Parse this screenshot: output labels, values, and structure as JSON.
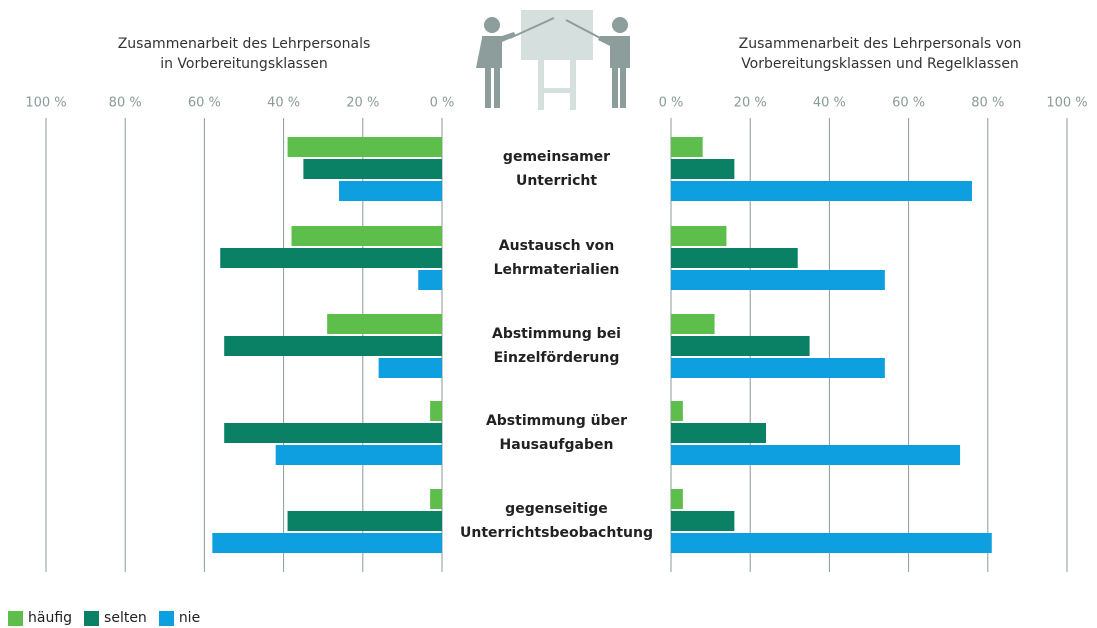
{
  "chart_data": [
    {
      "type": "bar",
      "orientation": "horizontal",
      "title": "Zusammenarbeit des Lehrpersonals\nin Vorbereitungsklassen",
      "categories": [
        "gemeinsamer\nUnterricht",
        "Austausch von\nLehrmaterialien",
        "Abstimmung bei\nEinzelförderung",
        "Abstimmung über\nHausaufgaben",
        "gegenseitige\nUnterrichtsbeobachtung"
      ],
      "series": [
        {
          "name": "häufig",
          "color": "#5dbe4c",
          "values": [
            39,
            38,
            29,
            3,
            3
          ]
        },
        {
          "name": "selten",
          "color": "#0a8064",
          "values": [
            35,
            56,
            55,
            55,
            39
          ]
        },
        {
          "name": "nie",
          "color": "#0d9fe0",
          "values": [
            26,
            6,
            16,
            42,
            58
          ]
        }
      ],
      "xlim": [
        100,
        0
      ],
      "xticks": [
        {
          "value": 100,
          "label": "100 %"
        },
        {
          "value": 80,
          "label": "80 %"
        },
        {
          "value": 60,
          "label": "60 %"
        },
        {
          "value": 40,
          "label": "40 %"
        },
        {
          "value": 20,
          "label": "20 %"
        },
        {
          "value": 0,
          "label": "0 %"
        }
      ],
      "grid": true
    },
    {
      "type": "bar",
      "orientation": "horizontal",
      "title": "Zusammenarbeit des Lehrpersonals von\nVorbereitungsklassen und Regelklassen",
      "series": [
        {
          "color": "#5dbe4c",
          "values": [
            8,
            14,
            11,
            3,
            3
          ]
        },
        {
          "color": "#0a8064",
          "values": [
            16,
            32,
            35,
            24,
            16
          ]
        },
        {
          "color": "#0d9fe0",
          "values": [
            76,
            54,
            54,
            73,
            81
          ]
        }
      ],
      "xlim": [
        0,
        100
      ],
      "xticks": [
        {
          "value": 0,
          "label": "0 %"
        },
        {
          "value": 20,
          "label": "20 %"
        },
        {
          "value": 40,
          "label": "40 %"
        },
        {
          "value": 60,
          "label": "60 %"
        },
        {
          "value": 80,
          "label": "80 %"
        },
        {
          "value": 100,
          "label": "100 %"
        }
      ],
      "grid": true
    }
  ]
}
